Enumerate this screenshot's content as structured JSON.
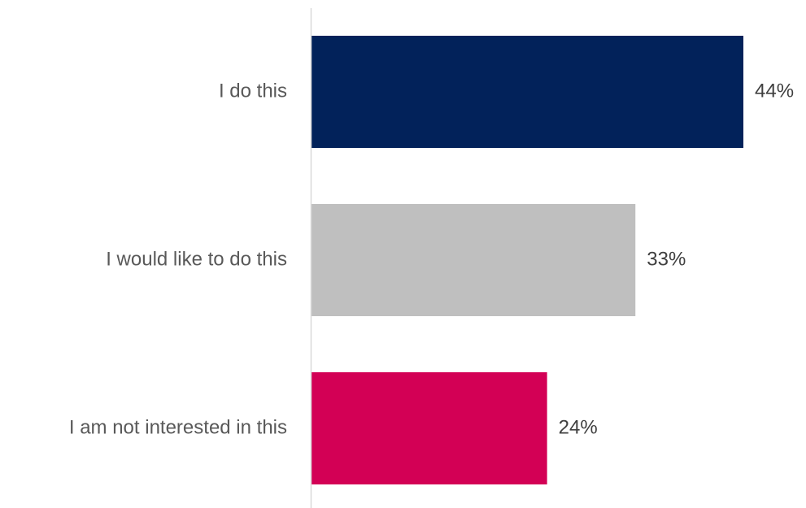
{
  "chart_data": {
    "type": "bar",
    "orientation": "horizontal",
    "title": "",
    "xlabel": "",
    "ylabel": "",
    "categories": [
      "I do this",
      "I would like to do this",
      "I am not interested in this"
    ],
    "values": [
      44,
      33,
      24
    ],
    "value_labels": [
      "44%",
      "33%",
      "24%"
    ],
    "unit": "%",
    "bar_colors": [
      "#02225a",
      "#bfbfbf",
      "#d30055"
    ],
    "axis_color": "#d9d9d9",
    "grid": false,
    "legend": "none"
  }
}
